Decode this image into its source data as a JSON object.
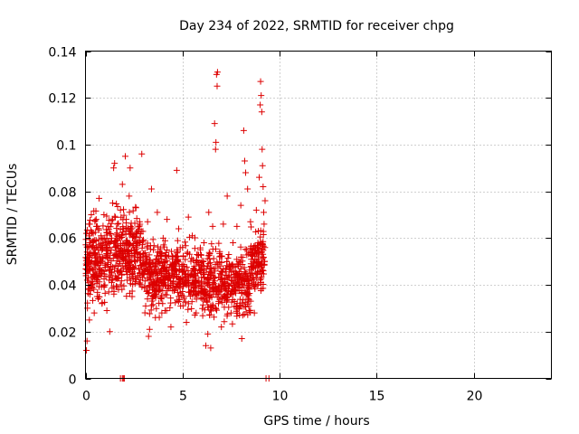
{
  "chart_data": {
    "type": "scatter",
    "title": "Day 234 of 2022, SRMTID for receiver chpg",
    "xlabel": "GPS time / hours",
    "ylabel": "SRMTID / TECUs",
    "xlim": [
      0,
      24
    ],
    "ylim": [
      0,
      0.14
    ],
    "xticks": [
      0,
      5,
      10,
      15,
      20
    ],
    "xtick_labels": [
      "0",
      "5",
      "10",
      "15",
      "20"
    ],
    "yticks": [
      0,
      0.02,
      0.04,
      0.06,
      0.08,
      0.1,
      0.12,
      0.14
    ],
    "ytick_labels": [
      "0",
      "0.02",
      "0.04",
      "0.06",
      "0.08",
      "0.1",
      "0.12",
      "0.14"
    ],
    "grid": true,
    "marker": "+",
    "colors": {
      "marker": "#dd0000",
      "grid": "#a0a0a0",
      "axis": "#000000"
    },
    "series": [
      {
        "name": "SRMTID",
        "x_range": [
          0.0,
          9.25
        ],
        "points": [
          [
            0.05,
            0.012
          ],
          [
            0.08,
            0.016
          ],
          [
            0.1,
            0.03
          ],
          [
            0.12,
            0.045
          ],
          [
            0.15,
            0.052
          ],
          [
            0.18,
            0.066
          ],
          [
            0.2,
            0.025
          ],
          [
            0.25,
            0.058
          ],
          [
            0.3,
            0.07
          ],
          [
            0.35,
            0.04
          ],
          [
            0.4,
            0.062
          ],
          [
            0.45,
            0.028
          ],
          [
            0.5,
            0.05
          ],
          [
            0.55,
            0.068
          ],
          [
            0.6,
            0.035
          ],
          [
            0.65,
            0.055
          ],
          [
            0.7,
            0.077
          ],
          [
            0.75,
            0.045
          ],
          [
            0.8,
            0.061
          ],
          [
            0.85,
            0.032
          ],
          [
            0.9,
            0.058
          ],
          [
            0.95,
            0.07
          ],
          [
            1.0,
            0.04
          ],
          [
            1.05,
            0.052
          ],
          [
            1.1,
            0.029
          ],
          [
            1.15,
            0.065
          ],
          [
            1.2,
            0.037
          ],
          [
            1.25,
            0.02
          ],
          [
            1.3,
            0.048
          ],
          [
            1.35,
            0.06
          ],
          [
            1.4,
            0.075
          ],
          [
            1.45,
            0.09
          ],
          [
            1.5,
            0.092
          ],
          [
            1.55,
            0.056
          ],
          [
            1.6,
            0.043
          ],
          [
            1.65,
            0.066
          ],
          [
            1.7,
            0.038
          ],
          [
            1.75,
            0.05
          ],
          [
            1.8,
            0.072
          ],
          [
            1.85,
            0.061
          ],
          [
            1.9,
            0.083
          ],
          [
            1.95,
            0.047
          ],
          [
            2.0,
            0.055
          ],
          [
            2.05,
            0.095
          ],
          [
            2.1,
            0.068
          ],
          [
            2.15,
            0.042
          ],
          [
            2.2,
            0.058
          ],
          [
            2.25,
            0.078
          ],
          [
            2.3,
            0.09
          ],
          [
            2.35,
            0.062
          ],
          [
            2.4,
            0.035
          ],
          [
            2.5,
            0.052
          ],
          [
            2.6,
            0.073
          ],
          [
            2.7,
            0.044
          ],
          [
            2.8,
            0.058
          ],
          [
            2.9,
            0.096
          ],
          [
            3.0,
            0.048
          ],
          [
            3.1,
            0.031
          ],
          [
            3.2,
            0.067
          ],
          [
            3.25,
            0.018
          ],
          [
            3.3,
            0.021
          ],
          [
            3.4,
            0.081
          ],
          [
            3.45,
            0.038
          ],
          [
            3.5,
            0.055
          ],
          [
            3.6,
            0.026
          ],
          [
            3.7,
            0.071
          ],
          [
            3.8,
            0.042
          ],
          [
            3.9,
            0.034
          ],
          [
            4.0,
            0.06
          ],
          [
            4.1,
            0.029
          ],
          [
            4.2,
            0.068
          ],
          [
            4.3,
            0.045
          ],
          [
            4.4,
            0.022
          ],
          [
            4.5,
            0.052
          ],
          [
            4.6,
            0.038
          ],
          [
            4.7,
            0.089
          ],
          [
            4.8,
            0.064
          ],
          [
            4.9,
            0.031
          ],
          [
            5.0,
            0.056
          ],
          [
            5.1,
            0.043
          ],
          [
            5.2,
            0.024
          ],
          [
            5.3,
            0.069
          ],
          [
            5.4,
            0.037
          ],
          [
            5.5,
            0.061
          ],
          [
            5.6,
            0.048
          ],
          [
            5.7,
            0.028
          ],
          [
            5.8,
            0.053
          ],
          [
            5.9,
            0.046
          ],
          [
            6.0,
            0.034
          ],
          [
            6.1,
            0.058
          ],
          [
            6.2,
            0.014
          ],
          [
            6.3,
            0.019
          ],
          [
            6.35,
            0.071
          ],
          [
            6.4,
            0.027
          ],
          [
            6.45,
            0.013
          ],
          [
            6.5,
            0.045
          ],
          [
            6.55,
            0.065
          ],
          [
            6.6,
            0.038
          ],
          [
            6.65,
            0.109
          ],
          [
            6.7,
            0.098
          ],
          [
            6.72,
            0.101
          ],
          [
            6.75,
            0.13
          ],
          [
            6.78,
            0.125
          ],
          [
            6.8,
            0.131
          ],
          [
            6.85,
            0.032
          ],
          [
            6.9,
            0.052
          ],
          [
            7.0,
            0.022
          ],
          [
            7.1,
            0.066
          ],
          [
            7.2,
            0.036
          ],
          [
            7.3,
            0.078
          ],
          [
            7.4,
            0.044
          ],
          [
            7.5,
            0.028
          ],
          [
            7.6,
            0.058
          ],
          [
            7.7,
            0.039
          ],
          [
            7.8,
            0.065
          ],
          [
            7.9,
            0.05
          ],
          [
            8.0,
            0.074
          ],
          [
            8.05,
            0.017
          ],
          [
            8.1,
            0.043
          ],
          [
            8.15,
            0.106
          ],
          [
            8.2,
            0.093
          ],
          [
            8.25,
            0.088
          ],
          [
            8.3,
            0.055
          ],
          [
            8.35,
            0.081
          ],
          [
            8.4,
            0.033
          ],
          [
            8.5,
            0.067
          ],
          [
            8.6,
            0.047
          ],
          [
            8.7,
            0.028
          ],
          [
            8.8,
            0.072
          ],
          [
            8.85,
            0.056
          ],
          [
            8.9,
            0.063
          ],
          [
            8.95,
            0.086
          ],
          [
            9.0,
            0.117
          ],
          [
            9.02,
            0.127
          ],
          [
            9.05,
            0.121
          ],
          [
            9.08,
            0.114
          ],
          [
            9.1,
            0.098
          ],
          [
            9.12,
            0.091
          ],
          [
            9.15,
            0.082
          ],
          [
            9.18,
            0.071
          ],
          [
            9.2,
            0.066
          ],
          [
            9.22,
            0.05
          ],
          [
            9.25,
            0.076
          ]
        ],
        "density_points": 1400
      }
    ],
    "zero_points_x": [
      1.8,
      1.9,
      1.95,
      2.0,
      9.3,
      9.45
    ]
  }
}
